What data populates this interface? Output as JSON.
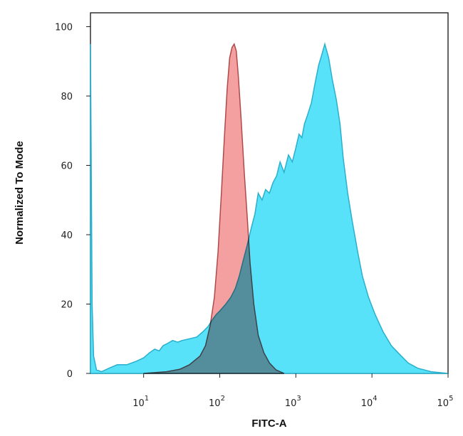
{
  "chart_data": {
    "type": "area",
    "title": "",
    "xlabel": "FITC-A",
    "ylabel": "Normalized To Mode",
    "xscale": "log",
    "xlim": [
      2,
      100000
    ],
    "ylim": [
      0,
      104
    ],
    "x_ticks": [
      {
        "value": 10,
        "base": "10",
        "exp": "1"
      },
      {
        "value": 100,
        "base": "10",
        "exp": "2"
      },
      {
        "value": 1000,
        "base": "10",
        "exp": "3"
      },
      {
        "value": 10000,
        "base": "10",
        "exp": "4"
      },
      {
        "value": 100000,
        "base": "10",
        "exp": "5"
      }
    ],
    "y_ticks": [
      0,
      20,
      40,
      60,
      80,
      100
    ],
    "grid": false,
    "legend": "none",
    "series": [
      {
        "color": "#4fe0fa",
        "stroke": "#2ab0cc",
        "points": [
          [
            2.0,
            95
          ],
          [
            2.05,
            60
          ],
          [
            2.1,
            20
          ],
          [
            2.2,
            5
          ],
          [
            2.4,
            1
          ],
          [
            2.8,
            0.5
          ],
          [
            3.5,
            1.5
          ],
          [
            4.5,
            2.5
          ],
          [
            6,
            2.5
          ],
          [
            8,
            3.5
          ],
          [
            10,
            4.5
          ],
          [
            12,
            6
          ],
          [
            14,
            7
          ],
          [
            16,
            6.5
          ],
          [
            18,
            8
          ],
          [
            20,
            8.5
          ],
          [
            24,
            9.5
          ],
          [
            28,
            9
          ],
          [
            32,
            9.5
          ],
          [
            40,
            10
          ],
          [
            50,
            10.5
          ],
          [
            60,
            12
          ],
          [
            70,
            13.5
          ],
          [
            80,
            15.5
          ],
          [
            90,
            17
          ],
          [
            100,
            18
          ],
          [
            120,
            20
          ],
          [
            140,
            22
          ],
          [
            160,
            24.5
          ],
          [
            180,
            28
          ],
          [
            200,
            32
          ],
          [
            230,
            37
          ],
          [
            260,
            42
          ],
          [
            290,
            46
          ],
          [
            320,
            52
          ],
          [
            360,
            50
          ],
          [
            400,
            53
          ],
          [
            450,
            52
          ],
          [
            500,
            55
          ],
          [
            560,
            57
          ],
          [
            620,
            61
          ],
          [
            700,
            58
          ],
          [
            800,
            63
          ],
          [
            900,
            61
          ],
          [
            1000,
            65
          ],
          [
            1100,
            69
          ],
          [
            1200,
            68
          ],
          [
            1300,
            72
          ],
          [
            1400,
            74
          ],
          [
            1600,
            78
          ],
          [
            1800,
            84
          ],
          [
            2000,
            89
          ],
          [
            2200,
            92
          ],
          [
            2400,
            95
          ],
          [
            2700,
            91
          ],
          [
            3000,
            85
          ],
          [
            3400,
            79
          ],
          [
            3800,
            72
          ],
          [
            4200,
            62
          ],
          [
            4800,
            52
          ],
          [
            5500,
            44
          ],
          [
            6500,
            35
          ],
          [
            7500,
            28
          ],
          [
            9000,
            22
          ],
          [
            11000,
            17
          ],
          [
            14000,
            12
          ],
          [
            18000,
            8
          ],
          [
            22000,
            6
          ],
          [
            30000,
            3
          ],
          [
            40000,
            1.5
          ],
          [
            60000,
            0.5
          ],
          [
            100000,
            0
          ]
        ]
      },
      {
        "color": "#f08080",
        "stroke": "#b04a4a",
        "points": [
          [
            10,
            0
          ],
          [
            20,
            0.5
          ],
          [
            30,
            1.2
          ],
          [
            40,
            2.5
          ],
          [
            55,
            5
          ],
          [
            65,
            8
          ],
          [
            75,
            14
          ],
          [
            85,
            22
          ],
          [
            95,
            35
          ],
          [
            105,
            52
          ],
          [
            115,
            68
          ],
          [
            125,
            82
          ],
          [
            135,
            91
          ],
          [
            145,
            94
          ],
          [
            155,
            95
          ],
          [
            165,
            93
          ],
          [
            175,
            86
          ],
          [
            190,
            74
          ],
          [
            210,
            58
          ],
          [
            230,
            45
          ],
          [
            250,
            32
          ],
          [
            280,
            20
          ],
          [
            320,
            11
          ],
          [
            380,
            6
          ],
          [
            450,
            3
          ],
          [
            550,
            1
          ],
          [
            700,
            0
          ]
        ]
      }
    ]
  }
}
